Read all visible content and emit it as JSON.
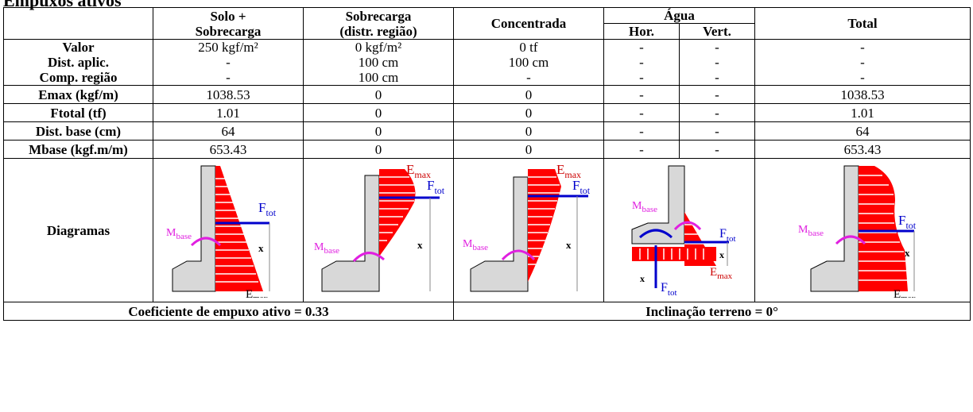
{
  "title": "Empuxos ativos",
  "headers": {
    "solo_line1": "Solo +",
    "solo_line2": "Sobrecarga",
    "sobre_line1": "Sobrecarga",
    "sobre_line2": "(distr. região)",
    "concentrada": "Concentrada",
    "agua": "Água",
    "hor": "Hor.",
    "vert": "Vert.",
    "total": "Total"
  },
  "rows": [
    {
      "label": "Valor",
      "cells": [
        "250 kgf/m²",
        "0 kgf/m²",
        "0 tf",
        "-",
        "-",
        "-"
      ]
    },
    {
      "label": "Dist. aplic.",
      "cells": [
        "-",
        "100 cm",
        "100 cm",
        "-",
        "-",
        "-"
      ]
    },
    {
      "label": "Comp. região",
      "cells": [
        "-",
        "100 cm",
        "-",
        "-",
        "-",
        "-"
      ]
    },
    {
      "label": "Emax (kgf/m)",
      "cells": [
        "1038.53",
        "0",
        "0",
        "-",
        "-",
        "1038.53"
      ]
    },
    {
      "label": "Ftotal (tf)",
      "cells": [
        "1.01",
        "0",
        "0",
        "-",
        "-",
        "1.01"
      ]
    },
    {
      "label": "Dist. base (cm)",
      "cells": [
        "64",
        "0",
        "0",
        "-",
        "-",
        "64"
      ]
    },
    {
      "label": "Mbase (kgf.m/m)",
      "cells": [
        "653.43",
        "0",
        "0",
        "-",
        "-",
        "653.43"
      ]
    }
  ],
  "diagram_label": "Diagramas",
  "diagram_symbols": {
    "mbase": "M",
    "mbase_sub": "base",
    "ftot": "F",
    "ftot_sub": "tot",
    "emax": "E",
    "emax_sub": "max",
    "x": "x"
  },
  "footer": {
    "left": "Coeficiente de empuxo ativo = 0.33",
    "right": "Inclinação terreno = 0°"
  },
  "colors": {
    "pressure": "#ff0000",
    "force": "#0000cc",
    "moment": "#e020e0",
    "wall": "#d8d8d8"
  }
}
